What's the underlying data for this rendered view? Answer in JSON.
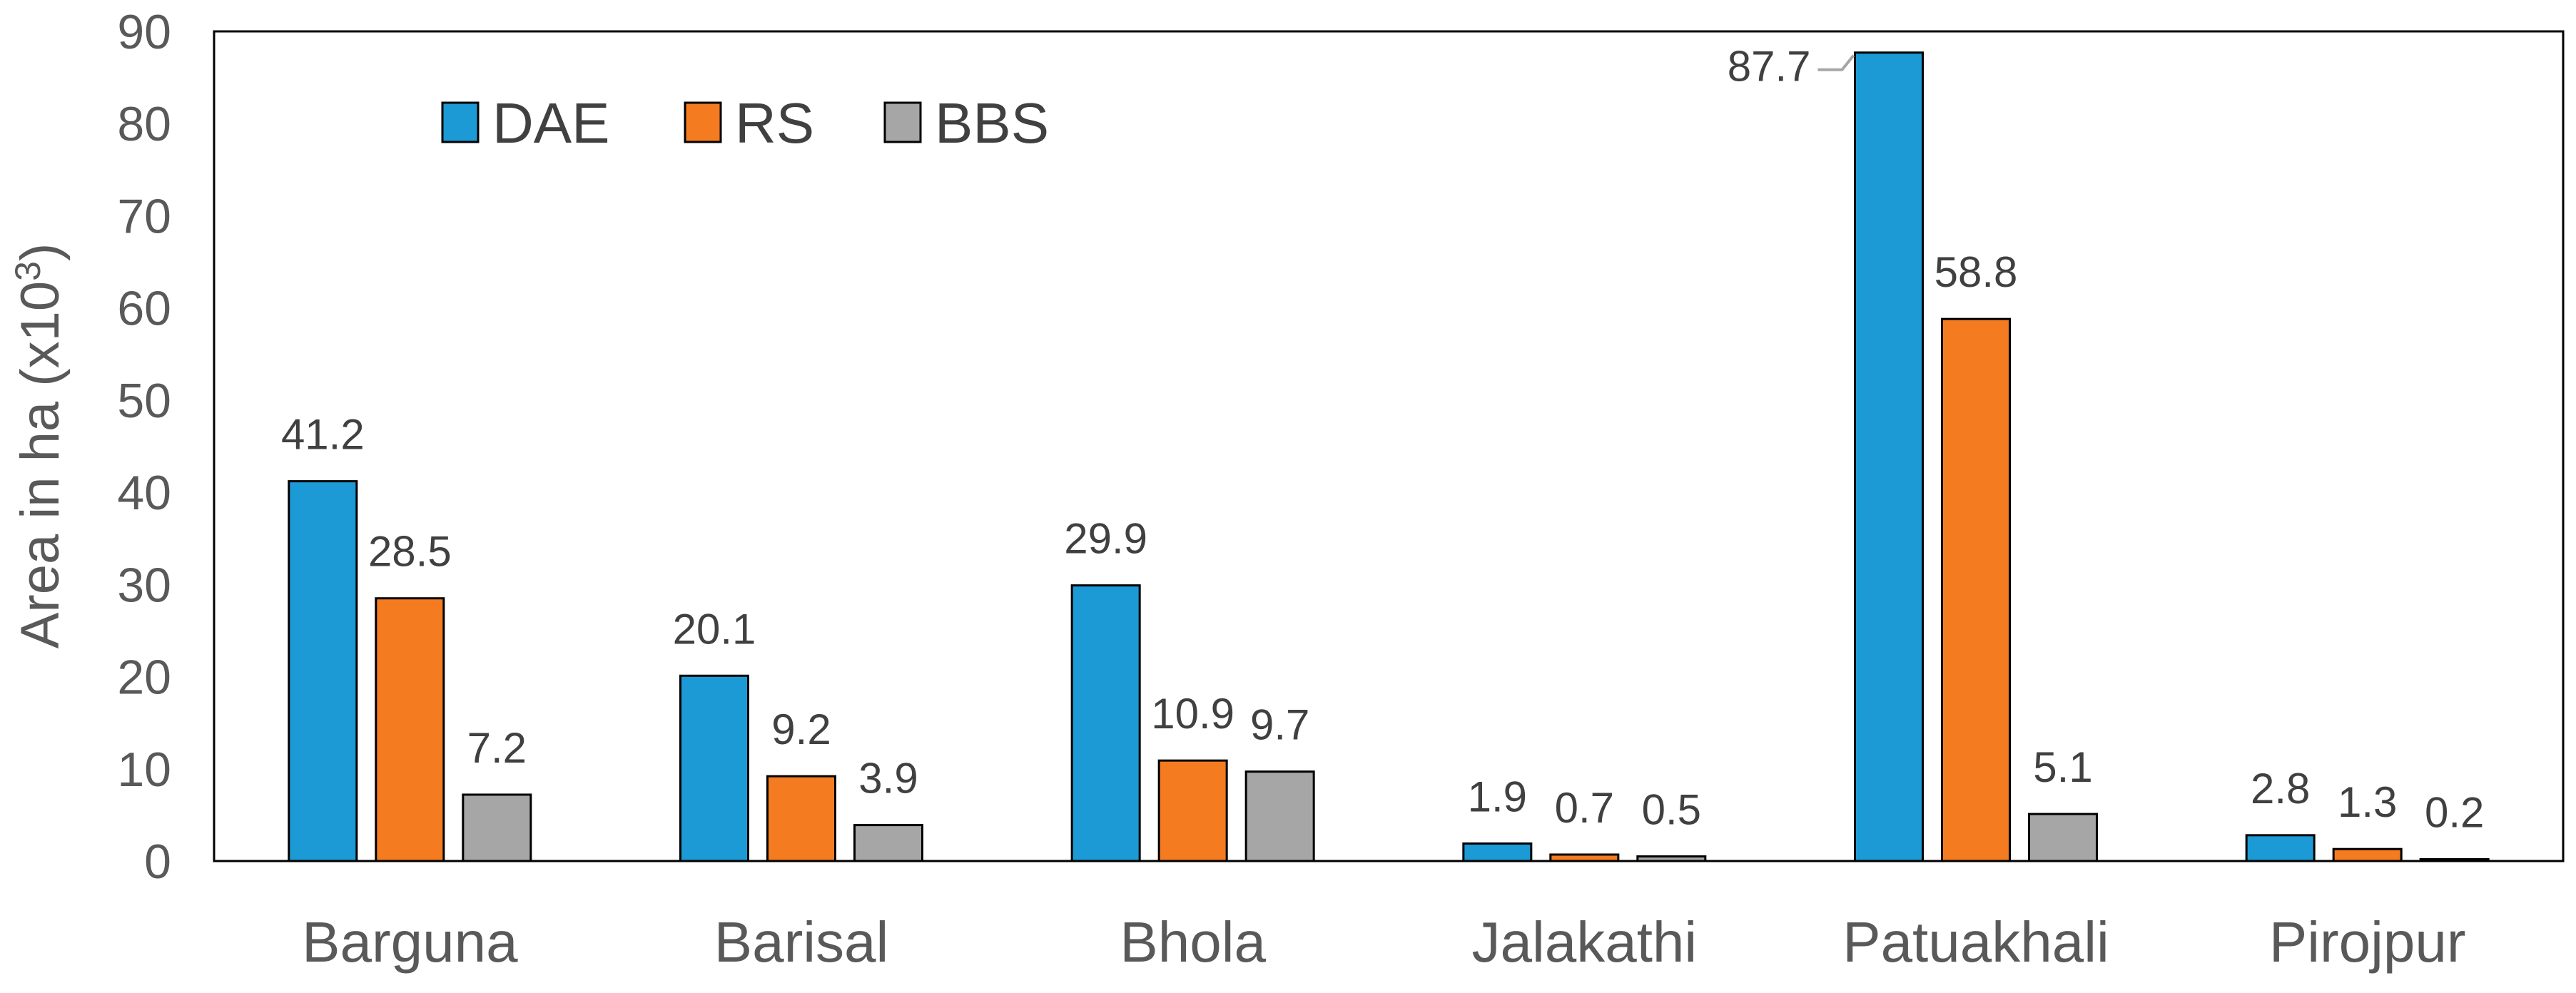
{
  "chart_data": {
    "type": "bar",
    "categories": [
      "Barguna",
      "Barisal",
      "Bhola",
      "Jalakathi",
      "Patuakhali",
      "Pirojpur"
    ],
    "series": [
      {
        "name": "DAE",
        "color": "#1B9AD6",
        "values": [
          41.2,
          20.1,
          29.9,
          1.9,
          87.7,
          2.8
        ]
      },
      {
        "name": "RS",
        "color": "#F47B20",
        "values": [
          28.5,
          9.2,
          10.9,
          0.7,
          58.8,
          1.3
        ]
      },
      {
        "name": "BBS",
        "color": "#A6A6A6",
        "values": [
          7.2,
          3.9,
          9.7,
          0.5,
          5.1,
          0.2
        ]
      }
    ],
    "ylabel": "Area in ha (x10³)",
    "ylabel_base": "Area in ha (x10",
    "ylabel_sup": "3",
    "ylabel_close": ")",
    "ylim": [
      0,
      90
    ],
    "yticks": [
      0,
      10,
      20,
      30,
      40,
      50,
      60,
      70,
      80,
      90
    ],
    "grid": false,
    "legend_position": "top-left"
  }
}
